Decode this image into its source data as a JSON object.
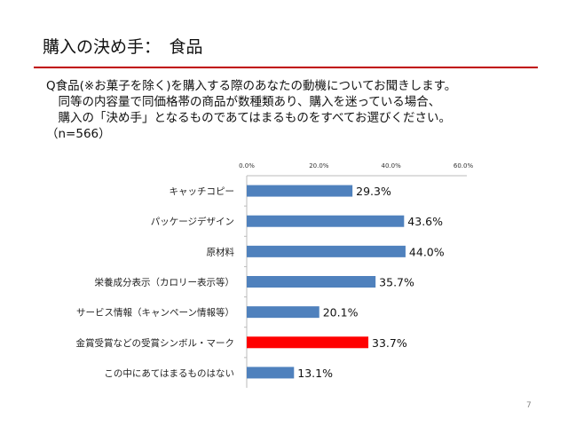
{
  "title": "購入の決め手：　食品",
  "question": [
    "Q食品(※お菓子を除く)を購入する際のあなたの動機についてお聞きします。",
    "　同等の内容量で同価格帯の商品が数種類あり、購入を迷っている場合、",
    "　購入の「決め手」となるものであてはまるものをすべてお選びください。",
    "（n=566）"
  ],
  "page_number": "7",
  "chart_data": {
    "type": "bar",
    "orientation": "horizontal",
    "categories": [
      "キャッチコピー",
      "パッケージデザイン",
      "原材料",
      "栄養成分表示（カロリー表示等）",
      "サービス情報（キャンペーン情報等）",
      "金賞受賞などの受賞シンボル・マーク",
      "この中にあてはまるものはない"
    ],
    "values": [
      29.3,
      43.6,
      44.0,
      35.7,
      20.1,
      33.7,
      13.1
    ],
    "data_labels": [
      "29.3%",
      "43.6%",
      "44.0%",
      "35.7%",
      "20.1%",
      "33.7%",
      "13.1%"
    ],
    "xlim": [
      0,
      60
    ],
    "xticks": [
      "0.0%",
      "20.0%",
      "40.0%",
      "60.0%"
    ],
    "axis_position": "top",
    "grid": false,
    "colors": [
      "#4f81bd",
      "#4f81bd",
      "#4f81bd",
      "#4f81bd",
      "#4f81bd",
      "#ff0000",
      "#4f81bd"
    ]
  }
}
